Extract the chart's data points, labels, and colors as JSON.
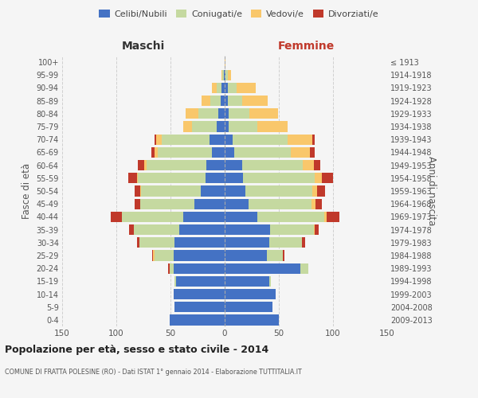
{
  "age_groups": [
    "0-4",
    "5-9",
    "10-14",
    "15-19",
    "20-24",
    "25-29",
    "30-34",
    "35-39",
    "40-44",
    "45-49",
    "50-54",
    "55-59",
    "60-64",
    "65-69",
    "70-74",
    "75-79",
    "80-84",
    "85-89",
    "90-94",
    "95-99",
    "100+"
  ],
  "birth_years": [
    "2009-2013",
    "2004-2008",
    "1999-2003",
    "1994-1998",
    "1989-1993",
    "1984-1988",
    "1979-1983",
    "1974-1978",
    "1969-1973",
    "1964-1968",
    "1959-1963",
    "1954-1958",
    "1949-1953",
    "1944-1948",
    "1939-1943",
    "1934-1938",
    "1929-1933",
    "1924-1928",
    "1919-1923",
    "1914-1918",
    "≤ 1913"
  ],
  "male_celibi": [
    51,
    46,
    47,
    45,
    47,
    47,
    46,
    42,
    38,
    28,
    22,
    18,
    17,
    12,
    14,
    7,
    6,
    4,
    3,
    1,
    0
  ],
  "male_coniugati": [
    0,
    0,
    0,
    1,
    4,
    18,
    33,
    42,
    57,
    50,
    55,
    62,
    55,
    50,
    44,
    23,
    18,
    9,
    4,
    1,
    0
  ],
  "male_vedovi": [
    0,
    0,
    0,
    0,
    0,
    1,
    0,
    0,
    0,
    0,
    1,
    1,
    2,
    3,
    5,
    8,
    12,
    8,
    5,
    1,
    0
  ],
  "male_divorziati": [
    0,
    0,
    0,
    0,
    1,
    1,
    2,
    4,
    10,
    5,
    5,
    8,
    6,
    3,
    2,
    0,
    0,
    0,
    0,
    0,
    0
  ],
  "female_celibi": [
    50,
    44,
    47,
    41,
    70,
    39,
    41,
    42,
    30,
    22,
    19,
    17,
    16,
    9,
    7,
    4,
    4,
    3,
    3,
    1,
    0
  ],
  "female_coniugati": [
    0,
    0,
    0,
    2,
    7,
    15,
    30,
    40,
    62,
    58,
    62,
    66,
    56,
    52,
    51,
    26,
    19,
    13,
    8,
    2,
    0
  ],
  "female_vedovi": [
    0,
    0,
    0,
    0,
    0,
    0,
    0,
    1,
    2,
    4,
    4,
    7,
    10,
    18,
    23,
    28,
    26,
    24,
    18,
    3,
    1
  ],
  "female_divorziati": [
    0,
    0,
    0,
    0,
    0,
    1,
    3,
    4,
    12,
    6,
    8,
    10,
    6,
    4,
    2,
    0,
    0,
    0,
    0,
    0,
    0
  ],
  "color_celibi": "#4472c4",
  "color_coniugati": "#c5d9a0",
  "color_vedovi": "#f9c76b",
  "color_divorziati": "#c0392b",
  "title": "Popolazione per età, sesso e stato civile - 2014",
  "subtitle": "COMUNE DI FRATTA POLESINE (RO) - Dati ISTAT 1° gennaio 2014 - Elaborazione TUTTITALIA.IT",
  "xlabel_left": "Maschi",
  "xlabel_right": "Femmine",
  "ylabel_left": "Fasce di età",
  "ylabel_right": "Anni di nascita",
  "xlim": 150,
  "bg_color": "#f5f5f5",
  "grid_color": "#cccccc"
}
